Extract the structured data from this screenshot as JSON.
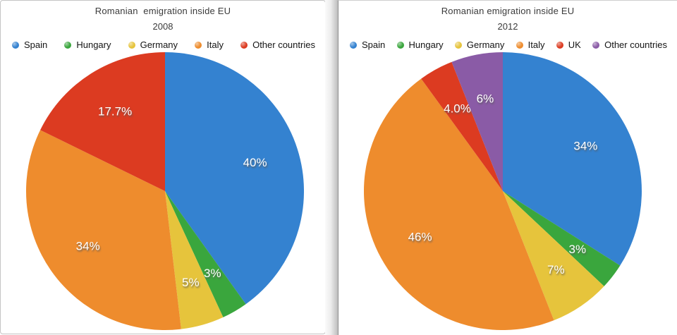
{
  "accent_colors": {
    "spain_blue": "#3482d0",
    "hungary_green": "#3aa63d",
    "germany_yellow": "#e6c43c",
    "italy_orange": "#ee8c2d",
    "red": "#dc3b21",
    "other_purple": "#8a5ba6"
  },
  "chart_data": [
    {
      "type": "pie",
      "title": "Romanian  emigration inside EU",
      "subtitle": "2008",
      "legend_position": "top",
      "direction": "clockwise",
      "start_angle_deg": 0,
      "label_radius_ratio": 0.68,
      "slices": [
        {
          "label": "Spain",
          "value": 40,
          "display": "40%",
          "color": "#3482d0"
        },
        {
          "label": "Hungary",
          "value": 3,
          "display": "3%",
          "color": "#3aa63d"
        },
        {
          "label": "Germany",
          "value": 5,
          "display": "5%",
          "color": "#e6c43c"
        },
        {
          "label": "Italy",
          "value": 34,
          "display": "34%",
          "color": "#ee8c2d"
        },
        {
          "label": "Other countries",
          "value": 17.7,
          "display": "17.7%",
          "color": "#dc3b21"
        }
      ]
    },
    {
      "type": "pie",
      "title": "Romanian emigration inside EU",
      "subtitle": "2012",
      "legend_position": "top",
      "direction": "clockwise",
      "start_angle_deg": 0,
      "label_radius_ratio": 0.68,
      "slices": [
        {
          "label": "Spain",
          "value": 34,
          "display": "34%",
          "color": "#3482d0"
        },
        {
          "label": "Hungary",
          "value": 3,
          "display": "3%",
          "color": "#3aa63d"
        },
        {
          "label": "Germany",
          "value": 7,
          "display": "7%",
          "color": "#e6c43c"
        },
        {
          "label": "Italy",
          "value": 46,
          "display": "46%",
          "color": "#ee8c2d"
        },
        {
          "label": "UK",
          "value": 4,
          "display": "4.0%",
          "color": "#dc3b21"
        },
        {
          "label": "Other countries",
          "value": 6,
          "display": "6%",
          "color": "#8a5ba6"
        }
      ]
    }
  ]
}
